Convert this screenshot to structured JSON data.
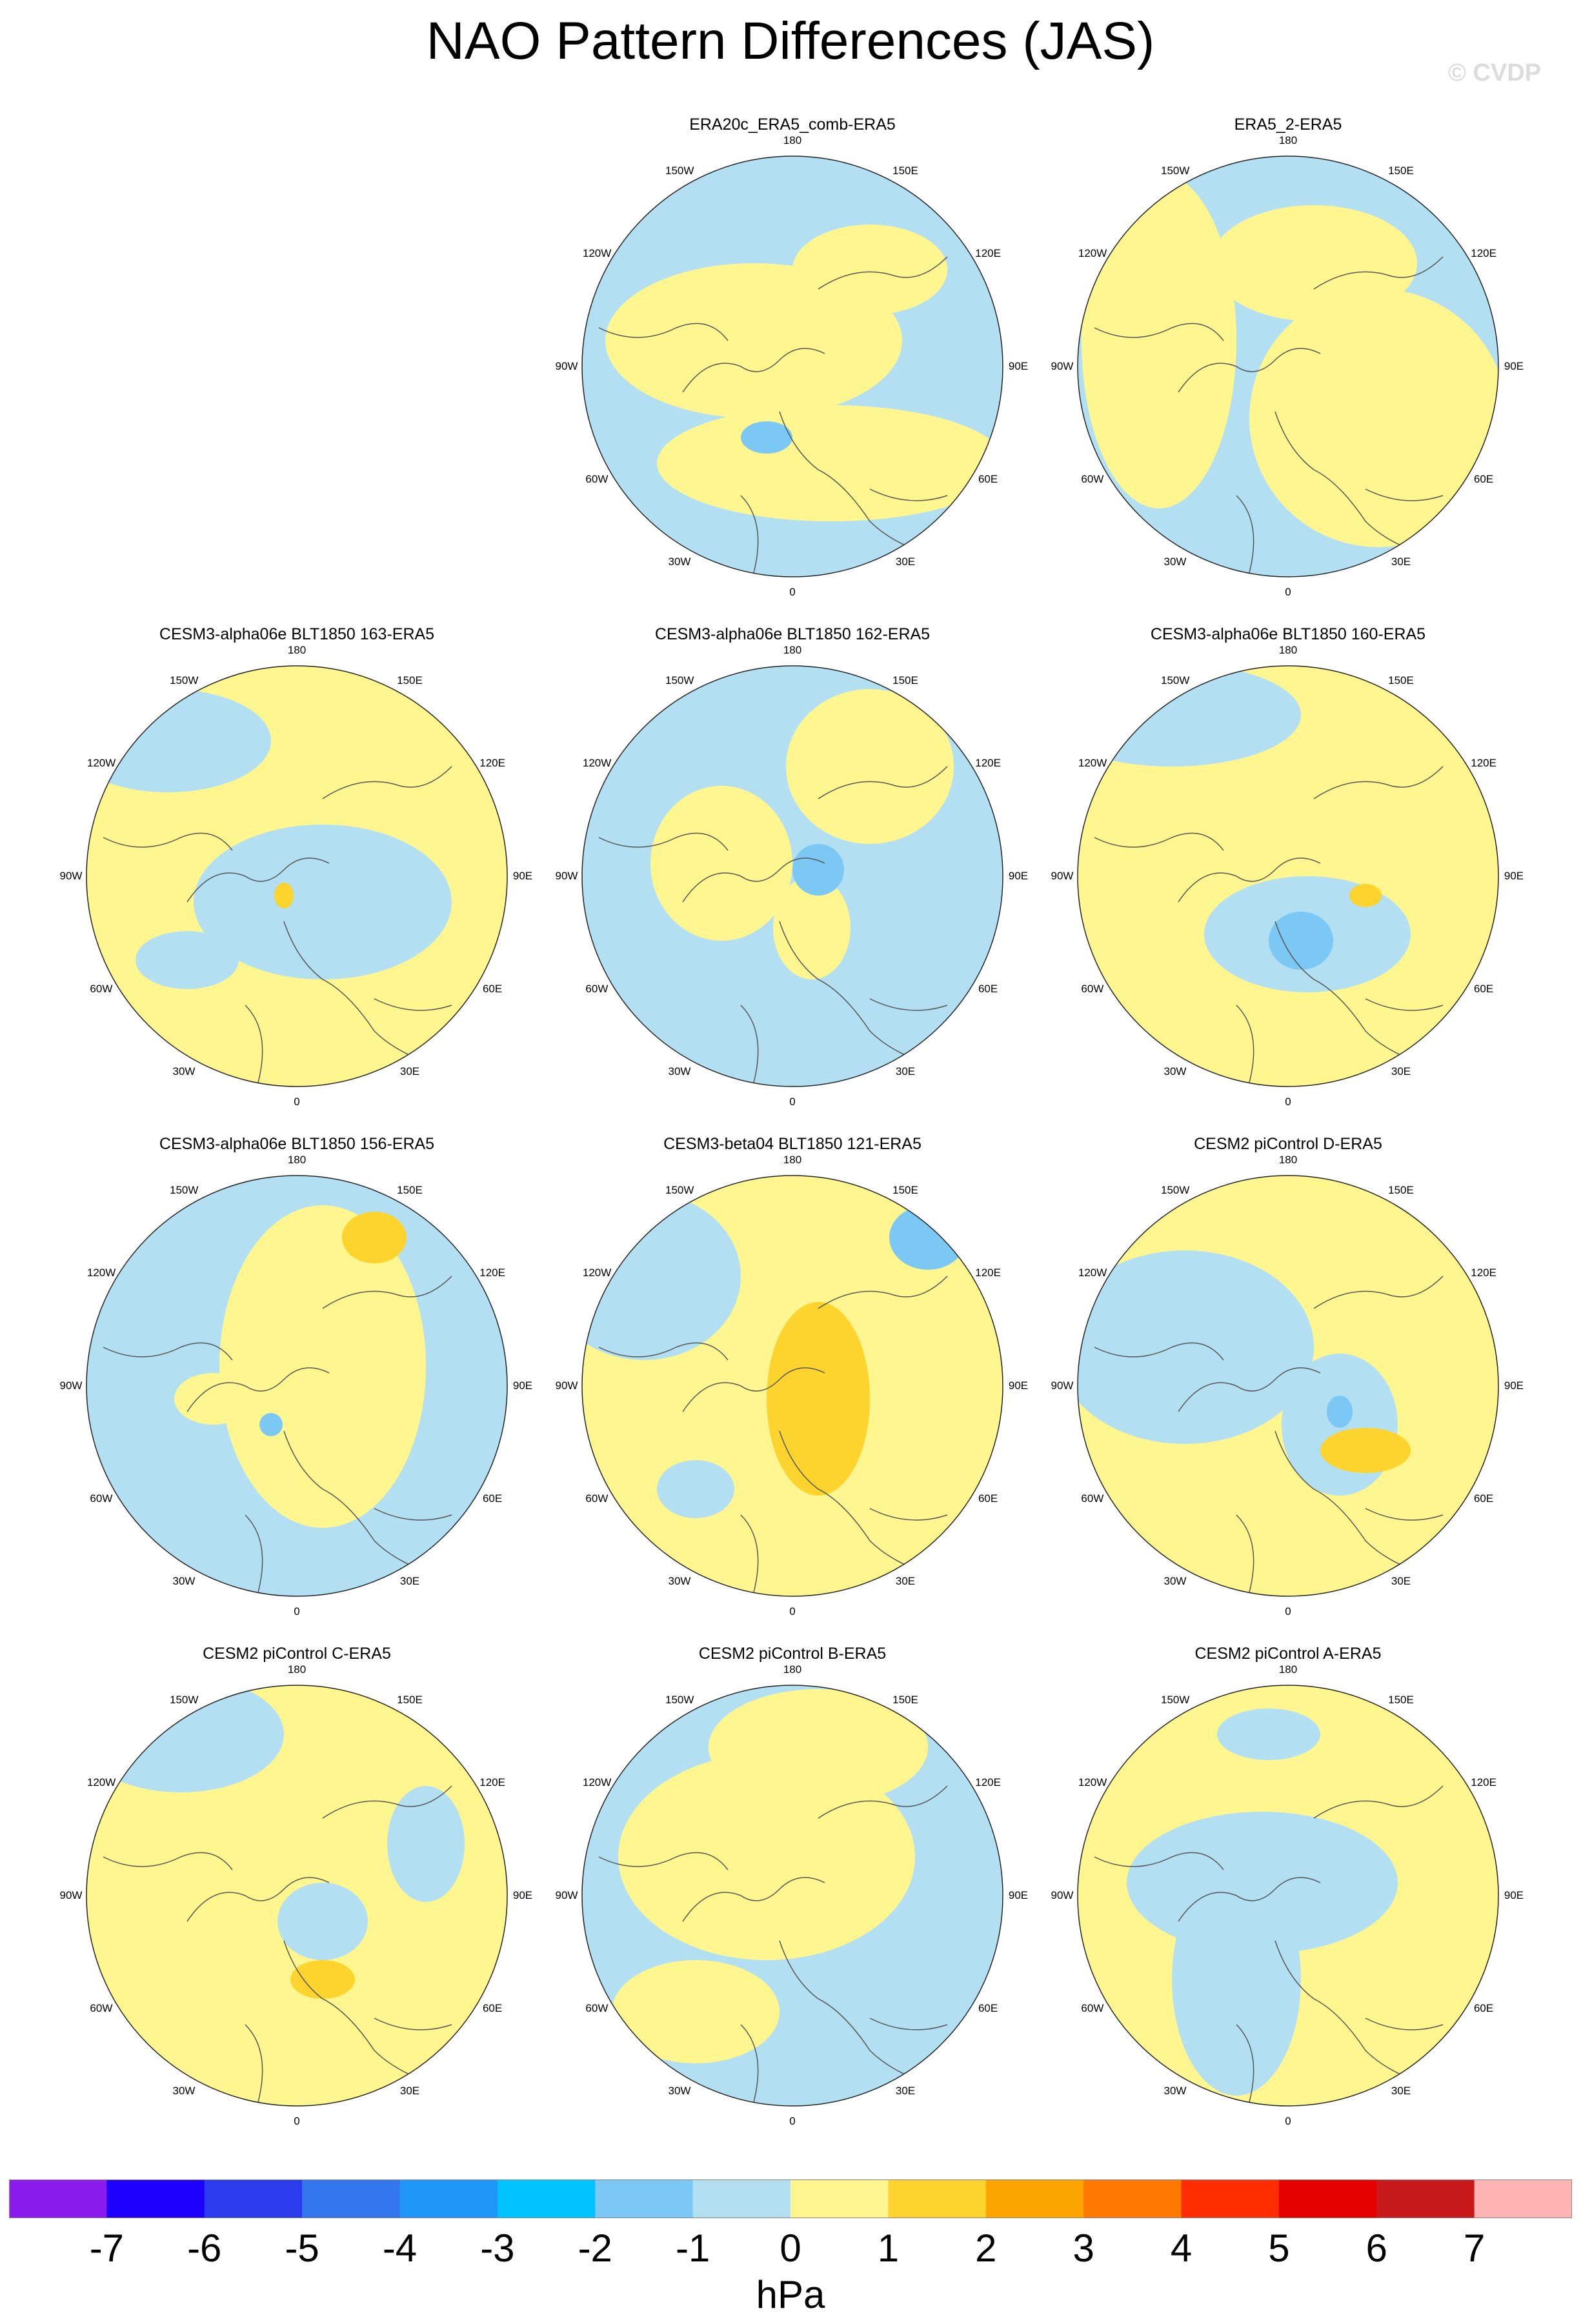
{
  "title": "NAO Pattern Differences (JAS)",
  "watermark": "© CVDP",
  "lon_labels": [
    "180",
    "150E",
    "120E",
    "90E",
    "60E",
    "30E",
    "0",
    "30W",
    "60W",
    "90W",
    "120W",
    "150W"
  ],
  "colors": {
    "positive_weak": "#fff68f",
    "positive_mid": "#fcd42d",
    "negative_weak": "#b3dff2",
    "negative_mid": "#7bc8f5",
    "coast": "#555555"
  },
  "panels": [
    {
      "title": "ERA20c_ERA5_comb-ERA5",
      "base": "negative_weak"
    },
    {
      "title": "ERA5_2-ERA5",
      "base": "negative_weak"
    },
    {
      "title": "CESM3-alpha06e BLT1850 163-ERA5",
      "base": "positive_weak"
    },
    {
      "title": "CESM3-alpha06e BLT1850 162-ERA5",
      "base": "negative_weak"
    },
    {
      "title": "CESM3-alpha06e BLT1850 160-ERA5",
      "base": "positive_weak"
    },
    {
      "title": "CESM3-alpha06e BLT1850 156-ERA5",
      "base": "negative_weak"
    },
    {
      "title": "CESM3-beta04 BLT1850 121-ERA5",
      "base": "positive_weak"
    },
    {
      "title": "CESM2 piControl D-ERA5",
      "base": "positive_weak"
    },
    {
      "title": "CESM2 piControl C-ERA5",
      "base": "positive_weak"
    },
    {
      "title": "CESM2 piControl B-ERA5",
      "base": "negative_weak"
    },
    {
      "title": "CESM2 piControl A-ERA5",
      "base": "positive_weak"
    }
  ],
  "colorbar": {
    "colors": [
      "#8a1cf0",
      "#1e00ff",
      "#2a3cec",
      "#3376ee",
      "#1e96fa",
      "#00c3ff",
      "#7bc8f5",
      "#b3dff2",
      "#fff68f",
      "#fcd42d",
      "#fca500",
      "#ff7800",
      "#ff2d00",
      "#e60000",
      "#c81a1a",
      "#ffb4b4"
    ],
    "labels": [
      "-7",
      "-6",
      "-5",
      "-4",
      "-3",
      "-2",
      "-1",
      "0",
      "1",
      "2",
      "3",
      "4",
      "5",
      "6",
      "7"
    ],
    "units": "hPa"
  }
}
